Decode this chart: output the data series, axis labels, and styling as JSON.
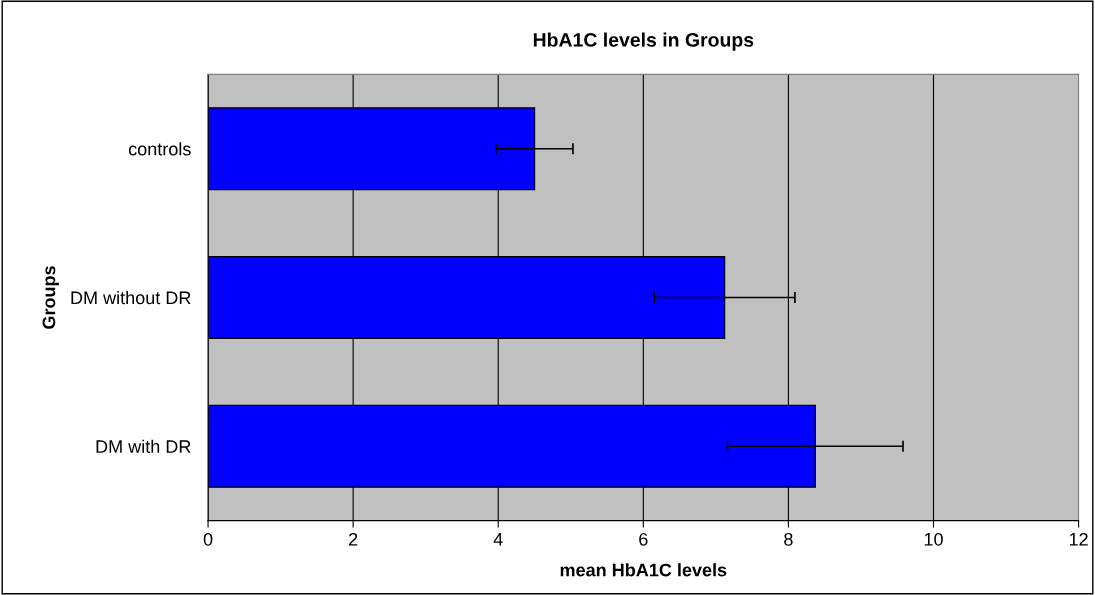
{
  "chart_data": {
    "type": "bar",
    "orientation": "horizontal",
    "title": "HbA1C levels in Groups",
    "xlabel": "mean HbA1C levels",
    "ylabel": "Groups",
    "categories": [
      "controls",
      "DM without DR",
      "DM with DR"
    ],
    "values": [
      4.5,
      7.12,
      8.37
    ],
    "errors": [
      0.53,
      0.97,
      1.21
    ],
    "color": "#0000ff",
    "xlim": [
      0,
      12
    ],
    "xticks": [
      0,
      2,
      4,
      6,
      8,
      10,
      12
    ],
    "grid": "x"
  }
}
